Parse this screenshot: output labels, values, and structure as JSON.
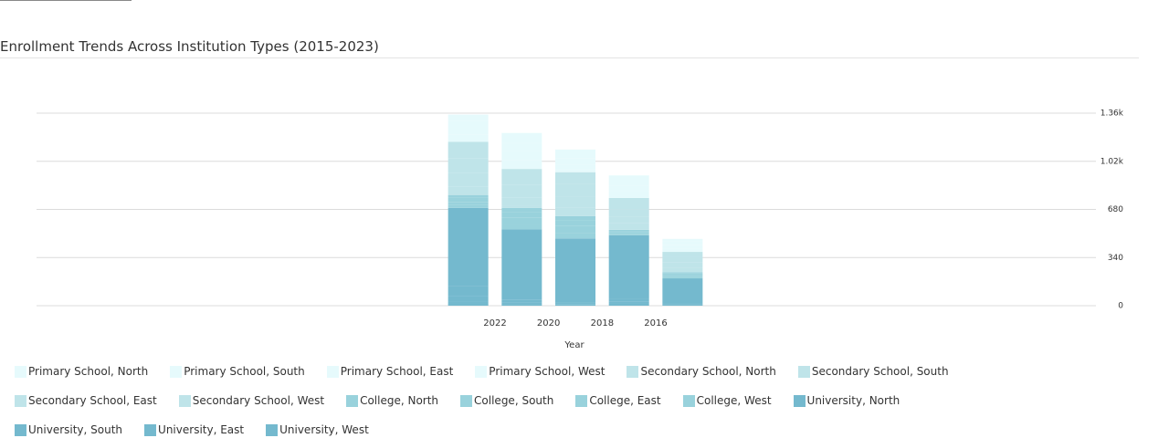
{
  "chart_data": {
    "type": "stacked-bar",
    "title": "Enrollment Trends Across Institution Types (2015-2023)",
    "x_label": "Year",
    "x": [
      2023,
      2021,
      2019,
      2017,
      2015
    ],
    "xlim": [
      2024,
      2014
    ],
    "xticks": [
      2022,
      2020,
      2018,
      2016
    ],
    "ylim": [
      0,
      1360
    ],
    "yticks": [
      0,
      340,
      680,
      {
        "value": 1020,
        "label": "1.02k"
      },
      {
        "value": 1360,
        "label": "1.36k"
      }
    ],
    "grid": true,
    "series": [
      {
        "name": "Primary School, North",
        "color": "#e6fafc",
        "values": [
          43,
          70,
          60,
          40,
          20
        ]
      },
      {
        "name": "Primary School, South",
        "color": "#e6fafc",
        "values": [
          50,
          60,
          50,
          30,
          25
        ]
      },
      {
        "name": "Primary School, East",
        "color": "#e6fafc",
        "values": [
          50,
          60,
          30,
          40,
          25
        ]
      },
      {
        "name": "Primary School, West",
        "color": "#e6fafc",
        "values": [
          50,
          64,
          20,
          49,
          22
        ]
      },
      {
        "name": "Secondary School, North",
        "color": "#bfe4e9",
        "values": [
          118,
          110,
          80,
          80,
          35
        ]
      },
      {
        "name": "Secondary School, South",
        "color": "#bfe4e9",
        "values": [
          100,
          90,
          90,
          50,
          40
        ]
      },
      {
        "name": "Secondary School, East",
        "color": "#bfe4e9",
        "values": [
          100,
          60,
          81,
          50,
          35
        ]
      },
      {
        "name": "Secondary School, West",
        "color": "#bfe4e9",
        "values": [
          57,
          16,
          60,
          45,
          33
        ]
      },
      {
        "name": "College, North",
        "color": "#99d2dc",
        "values": [
          19,
          30,
          30,
          8,
          10
        ]
      },
      {
        "name": "College, South",
        "color": "#99d2dc",
        "values": [
          30,
          40,
          40,
          10,
          12
        ]
      },
      {
        "name": "College, East",
        "color": "#99d2dc",
        "values": [
          20,
          40,
          47,
          10,
          10
        ]
      },
      {
        "name": "College, West",
        "color": "#99d2dc",
        "values": [
          22,
          40,
          40,
          10,
          12
        ]
      },
      {
        "name": "University, North",
        "color": "#74b9ce",
        "values": [
          555,
          500,
          452,
          450,
          180
        ]
      },
      {
        "name": "University, South",
        "color": "#74b9ce",
        "values": [
          69,
          20,
          10,
          20,
          6
        ]
      },
      {
        "name": "University, East",
        "color": "#74b9ce",
        "values": [
          41,
          10,
          5,
          15,
          4
        ]
      },
      {
        "name": "University, West",
        "color": "#74b9ce",
        "values": [
          26,
          10,
          8,
          13,
          3
        ]
      }
    ]
  }
}
